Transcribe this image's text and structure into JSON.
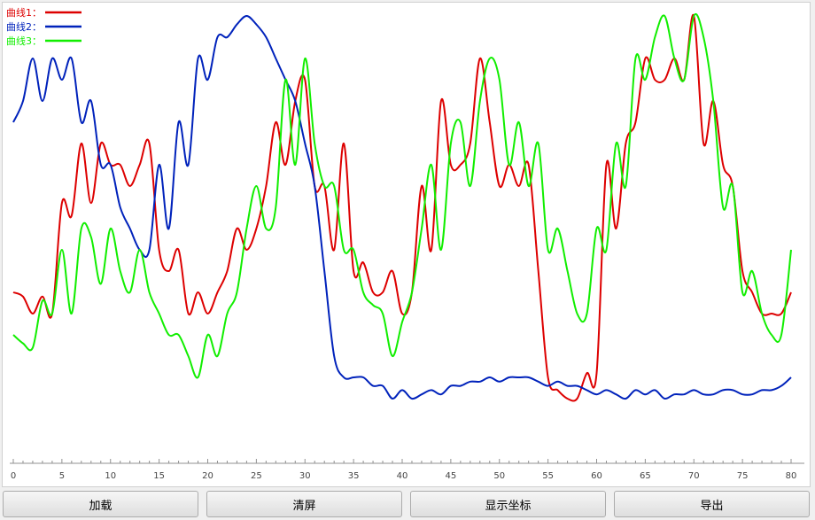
{
  "toolbar": {
    "buttons": [
      {
        "label": "加载"
      },
      {
        "label": "清屏"
      },
      {
        "label": "显示坐标"
      },
      {
        "label": "导出"
      }
    ]
  },
  "chart_data": {
    "type": "line",
    "title": "",
    "xlabel": "",
    "ylabel": "",
    "xlim": [
      0,
      80
    ],
    "xticks": [
      0,
      5,
      10,
      15,
      20,
      25,
      30,
      35,
      40,
      45,
      50,
      55,
      60,
      65,
      70,
      75,
      80
    ],
    "ylim": [
      0,
      100
    ],
    "legend_position": "top-left",
    "grid": false,
    "series": [
      {
        "name": "曲线1：",
        "color": "#dd0000",
        "x": [
          0,
          1,
          2,
          3,
          4,
          5,
          6,
          7,
          8,
          9,
          10,
          11,
          12,
          13,
          14,
          15,
          16,
          17,
          18,
          19,
          20,
          21,
          22,
          23,
          24,
          25,
          26,
          27,
          28,
          29,
          30,
          31,
          32,
          33,
          34,
          35,
          36,
          37,
          38,
          39,
          40,
          41,
          42,
          43,
          44,
          45,
          46,
          47,
          48,
          49,
          50,
          51,
          52,
          53,
          54,
          55,
          56,
          57,
          58,
          59,
          60,
          61,
          62,
          63,
          64,
          65,
          66,
          67,
          68,
          69,
          70,
          71,
          72,
          73,
          74,
          75,
          76,
          77,
          78,
          79,
          80
        ],
        "values": [
          35,
          34,
          30,
          34,
          30,
          56,
          53,
          70,
          56,
          70,
          65,
          65,
          60,
          65,
          70,
          45,
          40,
          45,
          30,
          35,
          30,
          35,
          40,
          50,
          45,
          50,
          60,
          75,
          65,
          80,
          85,
          60,
          60,
          45,
          70,
          40,
          42,
          35,
          35,
          40,
          30,
          35,
          60,
          45,
          80,
          65,
          65,
          70,
          90,
          75,
          60,
          65,
          60,
          65,
          40,
          15,
          12,
          10,
          10,
          16,
          16,
          65,
          50,
          70,
          75,
          90,
          85,
          85,
          90,
          85,
          100,
          70,
          80,
          65,
          60,
          40,
          35,
          30,
          30,
          30,
          35
        ]
      },
      {
        "name": "曲线2：",
        "color": "#0022bb",
        "x": [
          0,
          1,
          2,
          3,
          4,
          5,
          6,
          7,
          8,
          9,
          10,
          11,
          12,
          13,
          14,
          15,
          16,
          17,
          18,
          19,
          20,
          21,
          22,
          23,
          24,
          25,
          26,
          27,
          28,
          29,
          30,
          31,
          32,
          33,
          34,
          35,
          36,
          37,
          38,
          39,
          40,
          41,
          42,
          43,
          44,
          45,
          46,
          47,
          48,
          49,
          50,
          51,
          52,
          53,
          54,
          55,
          56,
          57,
          58,
          59,
          60,
          61,
          62,
          63,
          64,
          65,
          66,
          67,
          68,
          69,
          70,
          71,
          72,
          73,
          74,
          75,
          76,
          77,
          78,
          79,
          80
        ],
        "values": [
          75,
          80,
          90,
          80,
          90,
          85,
          90,
          75,
          80,
          65,
          65,
          55,
          50,
          45,
          45,
          65,
          50,
          75,
          65,
          90,
          85,
          95,
          95,
          98,
          100,
          98,
          95,
          90,
          85,
          80,
          70,
          60,
          40,
          20,
          15,
          15,
          15,
          13,
          13,
          10,
          12,
          10,
          11,
          12,
          11,
          13,
          13,
          14,
          14,
          15,
          14,
          15,
          15,
          15,
          14,
          13,
          14,
          13,
          13,
          12,
          11,
          12,
          11,
          10,
          12,
          11,
          12,
          10,
          11,
          11,
          12,
          11,
          11,
          12,
          12,
          11,
          11,
          12,
          12,
          13,
          15
        ]
      },
      {
        "name": "曲线3：",
        "color": "#11ee00",
        "x": [
          0,
          1,
          2,
          3,
          4,
          5,
          6,
          7,
          8,
          9,
          10,
          11,
          12,
          13,
          14,
          15,
          16,
          17,
          18,
          19,
          20,
          21,
          22,
          23,
          24,
          25,
          26,
          27,
          28,
          29,
          30,
          31,
          32,
          33,
          34,
          35,
          36,
          37,
          38,
          39,
          40,
          41,
          42,
          43,
          44,
          45,
          46,
          47,
          48,
          49,
          50,
          51,
          52,
          53,
          54,
          55,
          56,
          57,
          58,
          59,
          60,
          61,
          62,
          63,
          64,
          65,
          66,
          67,
          68,
          69,
          70,
          71,
          72,
          73,
          74,
          75,
          76,
          77,
          78,
          79,
          80
        ],
        "values": [
          25,
          23,
          22,
          33,
          30,
          45,
          30,
          50,
          48,
          37,
          50,
          40,
          35,
          45,
          35,
          30,
          25,
          25,
          20,
          15,
          25,
          20,
          30,
          35,
          50,
          60,
          50,
          55,
          85,
          65,
          90,
          70,
          60,
          60,
          45,
          45,
          35,
          32,
          30,
          20,
          28,
          35,
          50,
          65,
          45,
          70,
          75,
          60,
          80,
          90,
          85,
          65,
          75,
          60,
          70,
          45,
          50,
          40,
          30,
          30,
          50,
          45,
          70,
          60,
          90,
          85,
          95,
          100,
          90,
          85,
          100,
          95,
          80,
          55,
          60,
          35,
          40,
          30,
          25,
          25,
          45
        ]
      }
    ]
  }
}
